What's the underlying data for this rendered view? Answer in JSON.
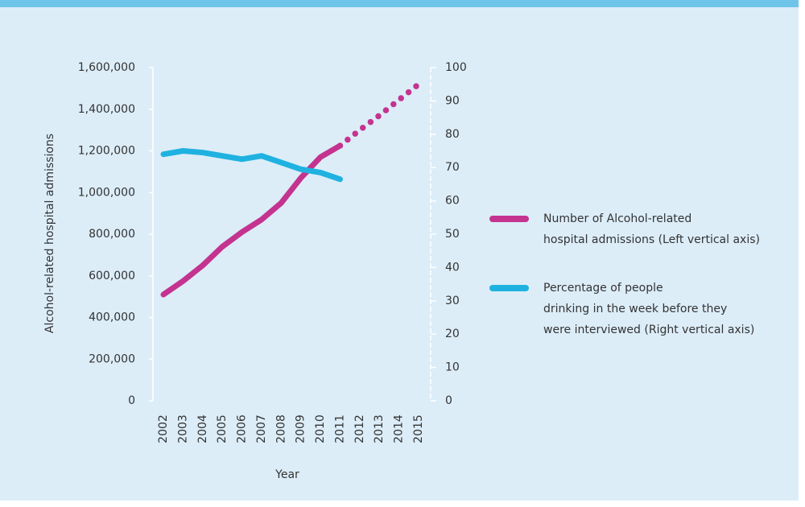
{
  "chart_data": {
    "type": "line",
    "categories": [
      "2002",
      "2003",
      "2004",
      "2005",
      "2006",
      "2007",
      "2008",
      "2009",
      "2010",
      "2011",
      "2012",
      "2013",
      "2014",
      "2015"
    ],
    "x_label": "Year",
    "y_label": "Alcohol-related hospital admissions",
    "ylim": [
      0,
      1600000
    ],
    "yticks": [
      0,
      {
        "value": 200000,
        "label": "200,000"
      },
      {
        "value": 400000,
        "label": "400,000"
      },
      {
        "value": 600000,
        "label": "600,000"
      },
      {
        "value": 800000,
        "label": "800,000"
      },
      {
        "value": 1000000,
        "label": "1,000,000"
      },
      {
        "value": 1200000,
        "label": "1,200,000"
      },
      {
        "value": 1400000,
        "label": "1,400,000"
      },
      {
        "value": 1600000,
        "label": "1,600,000"
      }
    ],
    "y2lim": [
      0,
      100
    ],
    "y2ticks": [
      0,
      10,
      20,
      30,
      40,
      50,
      60,
      70,
      80,
      90,
      100
    ],
    "projection_from": "2011",
    "legend": "right",
    "series": [
      {
        "name": "Number of Alcohol-related\nhospital admissions (Left vertical axis)",
        "color": "#c4338f",
        "values": [
          510000,
          575000,
          650000,
          740000,
          810000,
          870000,
          950000,
          1070000,
          1170000,
          1225000,
          1300000,
          1370000,
          1445000,
          1520000
        ]
      },
      {
        "name": "Percentage of people\ndrinking in the week before they\nwere interviewed (Right vertical axis)",
        "color": "#1fb2e0",
        "axis": "y2",
        "values": [
          74,
          75,
          74.5,
          73.5,
          72.5,
          73.5,
          71.5,
          69.5,
          68.5,
          66.5,
          null,
          null,
          null,
          null
        ]
      }
    ]
  }
}
